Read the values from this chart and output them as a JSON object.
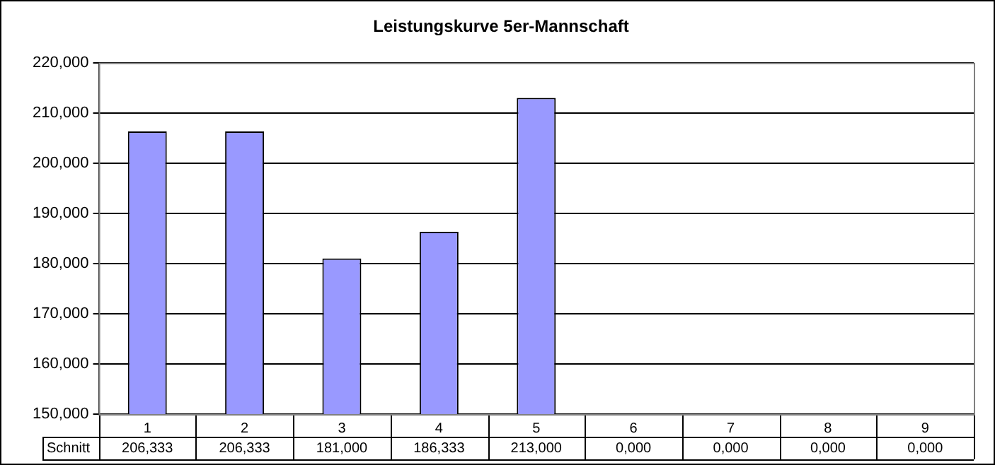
{
  "chart_data": {
    "type": "bar",
    "title": "Leistungskurve 5er-Mannschaft",
    "categories": [
      "1",
      "2",
      "3",
      "4",
      "5",
      "6",
      "7",
      "8",
      "9"
    ],
    "series": [
      {
        "name": "Schnitt",
        "color": "#9999ff",
        "values": [
          206.333,
          206.333,
          181,
          186.333,
          213,
          null,
          null,
          null,
          null
        ],
        "value_labels": [
          "206,333",
          "206,333",
          "181,000",
          "186,333",
          "213,000",
          "0,000",
          "0,000",
          "0,000",
          "0,000"
        ]
      }
    ],
    "ylim": [
      150,
      220
    ],
    "yticks": [
      {
        "value": 150,
        "label": "150,000"
      },
      {
        "value": 160,
        "label": "160,000"
      },
      {
        "value": 170,
        "label": "170,000"
      },
      {
        "value": 180,
        "label": "180,000"
      },
      {
        "value": 190,
        "label": "190,000"
      },
      {
        "value": 200,
        "label": "200,000"
      },
      {
        "value": 210,
        "label": "210,000"
      },
      {
        "value": 220,
        "label": "220,000"
      }
    ],
    "grid": "y",
    "legend": false
  }
}
